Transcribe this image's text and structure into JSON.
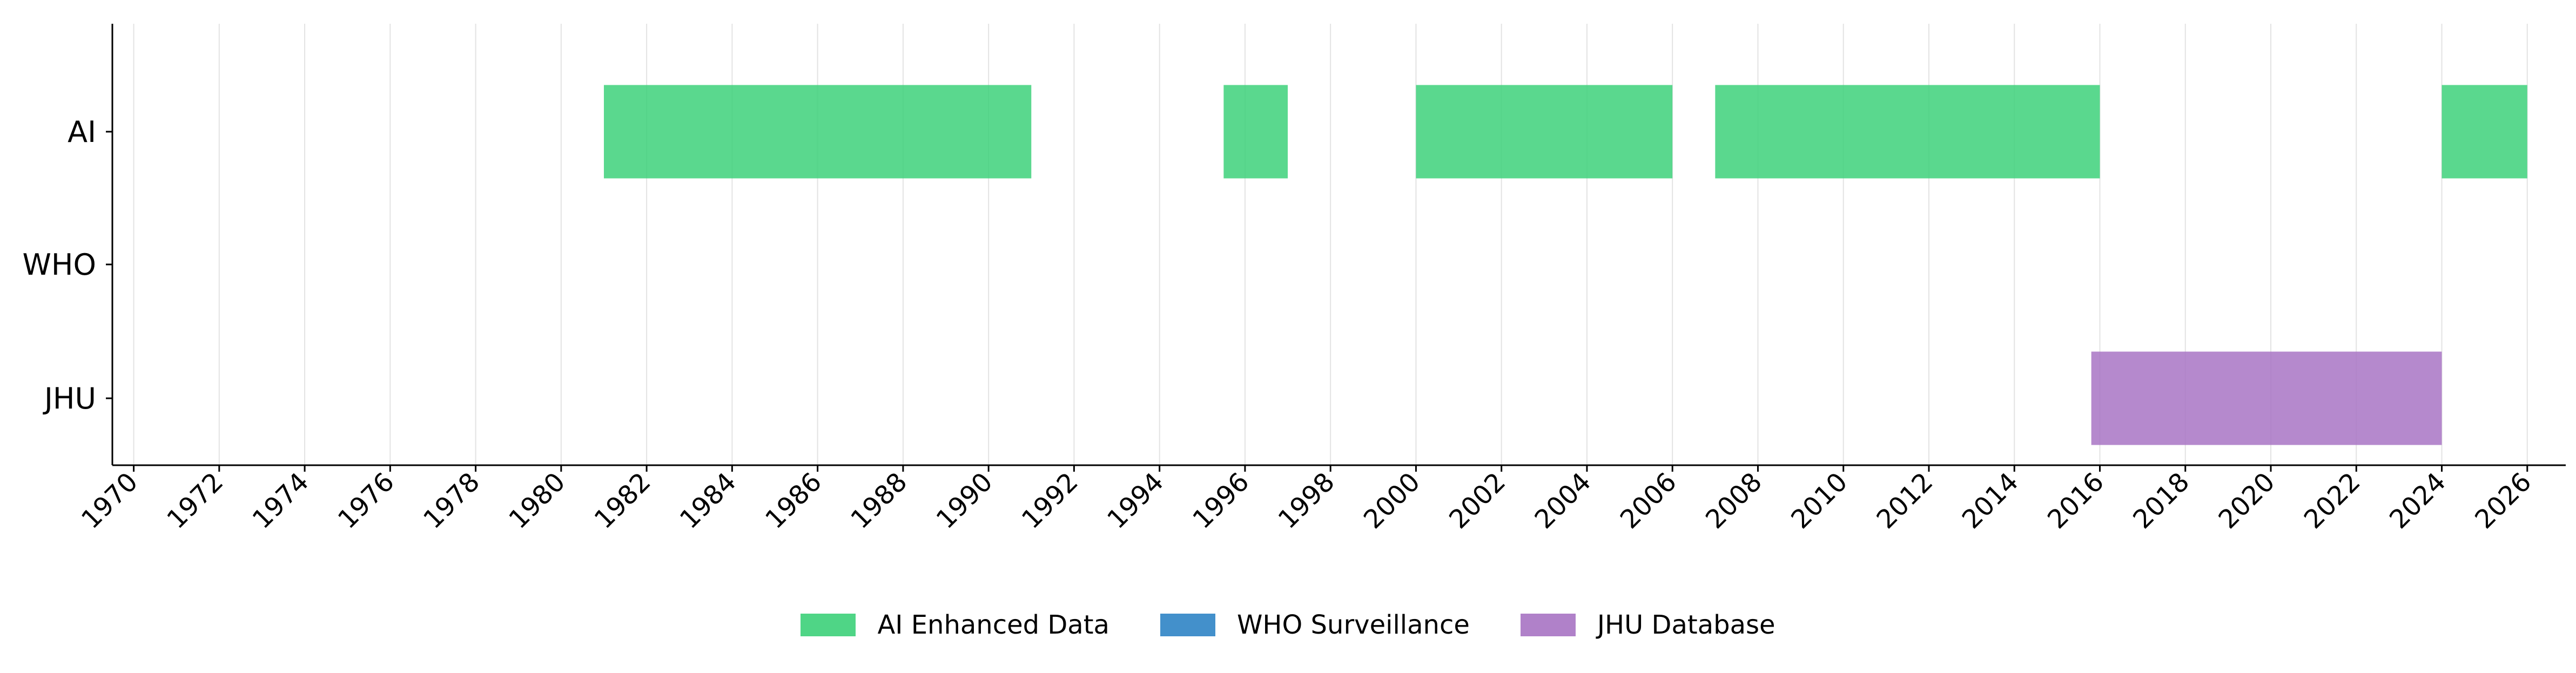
{
  "chart_data": {
    "type": "timeline",
    "title": "",
    "xlabel": "",
    "ylabel": "",
    "xlim": [
      1969.5,
      2026.9
    ],
    "x_ticks": [
      1970,
      1972,
      1974,
      1976,
      1978,
      1980,
      1982,
      1984,
      1986,
      1988,
      1990,
      1992,
      1994,
      1996,
      1998,
      2000,
      2002,
      2004,
      2006,
      2008,
      2010,
      2012,
      2014,
      2016,
      2018,
      2020,
      2022,
      2024,
      2026
    ],
    "categories": [
      "AI",
      "WHO",
      "JHU"
    ],
    "grid": "vertical",
    "legend_position": "bottom",
    "series": [
      {
        "name": "AI Enhanced Data",
        "category": "AI",
        "color": "#3dd17a",
        "intervals": [
          [
            1981.0,
            1991.0
          ],
          [
            1995.5,
            1997.0
          ],
          [
            2000.0,
            2006.0
          ],
          [
            2007.0,
            2016.0
          ],
          [
            2024.0,
            2026.0
          ]
        ]
      },
      {
        "name": "WHO Surveillance",
        "category": "WHO",
        "color": "#2f84c6",
        "intervals": []
      },
      {
        "name": "JHU Database",
        "category": "JHU",
        "color": "#a874c4",
        "intervals": [
          [
            2015.8,
            2024.0
          ]
        ]
      }
    ]
  }
}
